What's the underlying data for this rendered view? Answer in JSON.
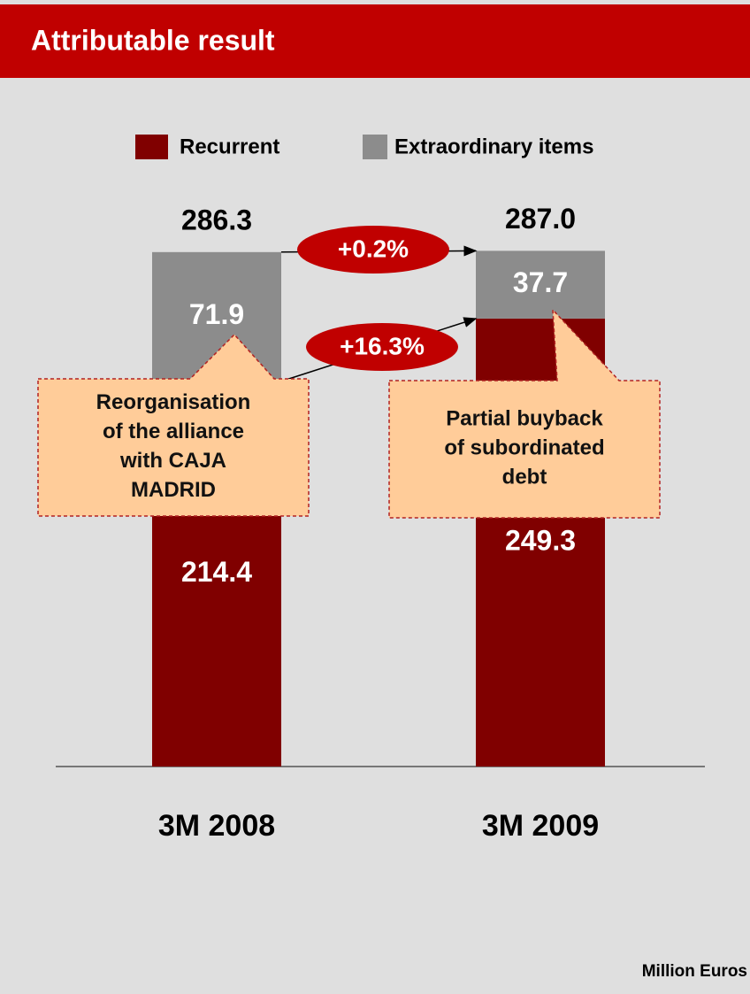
{
  "chart_data": {
    "type": "stacked_bar",
    "title": "Attributable result",
    "categories": [
      "3M 2008",
      "3M 2009"
    ],
    "series": [
      {
        "name": "Recurrent",
        "color": "#800000",
        "values": [
          214.4,
          249.3
        ]
      },
      {
        "name": "Extraordinary items",
        "color": "#8c8c8c",
        "values": [
          71.9,
          37.7
        ]
      }
    ],
    "totals": {
      "values": [
        286.3,
        287.0
      ],
      "value_labels": [
        "286.3",
        "287.0"
      ]
    },
    "growth": [
      "+0.2%",
      "+16.3%"
    ],
    "callouts": [
      {
        "lines": [
          "Reorganisation",
          "of the alliance",
          "with CAJA",
          "MADRID"
        ]
      },
      {
        "lines": [
          "Partial buyback",
          "of subordinated",
          "debt"
        ]
      }
    ],
    "note": "Million Euros"
  }
}
